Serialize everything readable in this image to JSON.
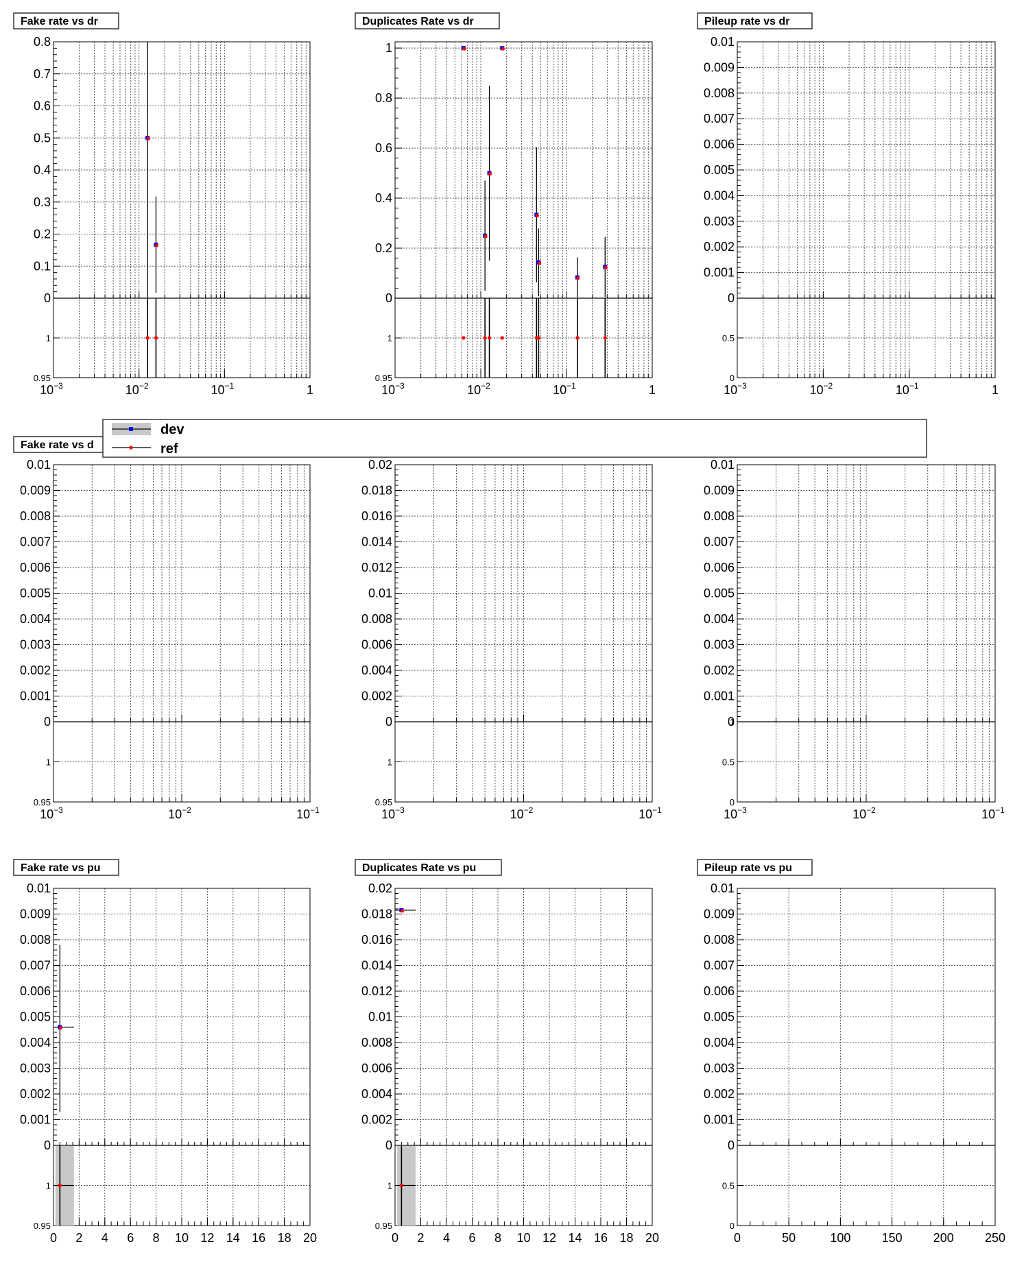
{
  "legend": {
    "entries": [
      {
        "label": "dev",
        "color": "#0000ff",
        "band_color": "#c8c8c8"
      },
      {
        "label": "ref",
        "color": "#ff0000"
      }
    ]
  },
  "colors": {
    "dev": "#0000ff",
    "ref": "#ff0000",
    "band": "#c8c8c8",
    "grid": "#555555"
  },
  "chart_data": [
    {
      "type": "scatter",
      "title": "Fake rate vs dr",
      "x_scale": "log",
      "xlim": [
        0.001,
        1
      ],
      "x_ticks": [
        {
          "v": 0.001,
          "b": "10",
          "e": "−3"
        },
        {
          "v": 0.01,
          "b": "10",
          "e": "−2"
        },
        {
          "v": 0.1,
          "b": "10",
          "e": "−1"
        },
        {
          "v": 1,
          "b": "1",
          "e": ""
        }
      ],
      "ylim": [
        0,
        0.8
      ],
      "y_ticks": [
        "0",
        "0.1",
        "0.2",
        "0.3",
        "0.4",
        "0.5",
        "0.6",
        "0.7",
        "0.8"
      ],
      "ratio": {
        "ylim": [
          0.95,
          1.05
        ],
        "y_ticks": [
          "0.95",
          "1"
        ]
      },
      "series": [
        {
          "name": "dev",
          "points": [
            {
              "x": 0.0126,
              "y": 0.5,
              "eyl": 0.5,
              "eyh": 0.5
            },
            {
              "x": 0.0158,
              "y": 0.167,
              "eyl": 0.15,
              "eyh": 0.15
            }
          ]
        },
        {
          "name": "ref",
          "points": [
            {
              "x": 0.0126,
              "y": 0.5,
              "eyl": 0.5,
              "eyh": 0.5
            },
            {
              "x": 0.0158,
              "y": 0.167,
              "eyl": 0.15,
              "eyh": 0.15
            }
          ]
        }
      ],
      "ratio_points": [
        {
          "x": 0.0126,
          "y": 1,
          "err": 0.2
        },
        {
          "x": 0.0158,
          "y": 1,
          "err": 0.2
        }
      ],
      "ratio_bands": []
    },
    {
      "type": "scatter",
      "title": "Duplicates Rate vs dr",
      "x_scale": "log",
      "xlim": [
        0.001,
        1
      ],
      "x_ticks": [
        {
          "v": 0.001,
          "b": "10",
          "e": "−3"
        },
        {
          "v": 0.01,
          "b": "10",
          "e": "−2"
        },
        {
          "v": 0.1,
          "b": "10",
          "e": "−1"
        },
        {
          "v": 1,
          "b": "1",
          "e": ""
        }
      ],
      "ylim": [
        0,
        1.025
      ],
      "y_ticks": [
        "0",
        "0.2",
        "0.4",
        "0.6",
        "0.8",
        "1"
      ],
      "ratio": {
        "ylim": [
          0.95,
          1.05
        ],
        "y_ticks": [
          "0.95",
          "1"
        ]
      },
      "series": [
        {
          "name": "dev",
          "points": [
            {
              "x": 0.0063,
              "y": 1,
              "eyl": 0,
              "eyh": 0
            },
            {
              "x": 0.0112,
              "y": 0.25,
              "eyl": 0.22,
              "eyh": 0.22
            },
            {
              "x": 0.0126,
              "y": 0.5,
              "eyl": 0.35,
              "eyh": 0.35
            },
            {
              "x": 0.0178,
              "y": 1,
              "eyl": 0,
              "eyh": 0
            },
            {
              "x": 0.0447,
              "y": 0.333,
              "eyl": 0.27,
              "eyh": 0.27
            },
            {
              "x": 0.0473,
              "y": 0.143,
              "eyl": 0.135,
              "eyh": 0.135
            },
            {
              "x": 0.134,
              "y": 0.083,
              "eyl": 0.08,
              "eyh": 0.08
            },
            {
              "x": 0.282,
              "y": 0.125,
              "eyl": 0.12,
              "eyh": 0.12
            }
          ]
        },
        {
          "name": "ref",
          "points": [
            {
              "x": 0.0063,
              "y": 1,
              "eyl": 0,
              "eyh": 0
            },
            {
              "x": 0.0112,
              "y": 0.25,
              "eyl": 0.22,
              "eyh": 0.22
            },
            {
              "x": 0.0126,
              "y": 0.5,
              "eyl": 0.35,
              "eyh": 0.35
            },
            {
              "x": 0.0178,
              "y": 1,
              "eyl": 0,
              "eyh": 0
            },
            {
              "x": 0.0447,
              "y": 0.333,
              "eyl": 0.27,
              "eyh": 0.27
            },
            {
              "x": 0.0473,
              "y": 0.143,
              "eyl": 0.135,
              "eyh": 0.135
            },
            {
              "x": 0.134,
              "y": 0.083,
              "eyl": 0.08,
              "eyh": 0.08
            },
            {
              "x": 0.282,
              "y": 0.125,
              "eyl": 0.12,
              "eyh": 0.12
            }
          ]
        }
      ],
      "ratio_points": [
        {
          "x": 0.0063,
          "y": 1,
          "err": 0
        },
        {
          "x": 0.0112,
          "y": 1,
          "err": 0.2
        },
        {
          "x": 0.0126,
          "y": 1,
          "err": 0.2
        },
        {
          "x": 0.0178,
          "y": 1,
          "err": 0
        },
        {
          "x": 0.0447,
          "y": 1,
          "err": 0.2
        },
        {
          "x": 0.0473,
          "y": 1,
          "err": 0.2
        },
        {
          "x": 0.134,
          "y": 1,
          "err": 0.2
        },
        {
          "x": 0.282,
          "y": 1,
          "err": 0.2
        }
      ],
      "ratio_bands": []
    },
    {
      "type": "scatter",
      "title": "Pileup rate vs dr",
      "x_scale": "log",
      "xlim": [
        0.001,
        1
      ],
      "x_ticks": [
        {
          "v": 0.001,
          "b": "10",
          "e": "−3"
        },
        {
          "v": 0.01,
          "b": "10",
          "e": "−2"
        },
        {
          "v": 0.1,
          "b": "10",
          "e": "−1"
        },
        {
          "v": 1,
          "b": "1",
          "e": ""
        }
      ],
      "ylim": [
        0,
        0.01
      ],
      "y_ticks": [
        "0",
        "0.001",
        "0.002",
        "0.003",
        "0.004",
        "0.005",
        "0.006",
        "0.007",
        "0.008",
        "0.009",
        "0.01"
      ],
      "ratio": {
        "ylim": [
          0,
          1
        ],
        "y_ticks": [
          "0",
          "0.5"
        ]
      },
      "series": [
        {
          "name": "dev",
          "points": []
        },
        {
          "name": "ref",
          "points": []
        }
      ],
      "ratio_points": [],
      "ratio_bands": []
    },
    {
      "type": "scatter",
      "title": "Fake rate vs d",
      "x_scale": "log",
      "xlim": [
        0.001,
        0.1
      ],
      "x_ticks": [
        {
          "v": 0.001,
          "b": "10",
          "e": "−3"
        },
        {
          "v": 0.01,
          "b": "10",
          "e": "−2"
        },
        {
          "v": 0.1,
          "b": "10",
          "e": "−1"
        }
      ],
      "ylim": [
        0,
        0.01
      ],
      "y_ticks": [
        "0",
        "0.001",
        "0.002",
        "0.003",
        "0.004",
        "0.005",
        "0.006",
        "0.007",
        "0.008",
        "0.009",
        "0.01"
      ],
      "ratio": {
        "ylim": [
          0.95,
          1.05
        ],
        "y_ticks": [
          "0.95",
          "1"
        ]
      },
      "series": [
        {
          "name": "dev",
          "points": []
        },
        {
          "name": "ref",
          "points": []
        }
      ],
      "ratio_points": [],
      "ratio_bands": []
    },
    {
      "type": "scatter",
      "title": "",
      "x_scale": "log",
      "xlim": [
        0.001,
        0.1
      ],
      "x_ticks": [
        {
          "v": 0.001,
          "b": "10",
          "e": "−3"
        },
        {
          "v": 0.01,
          "b": "10",
          "e": "−2"
        },
        {
          "v": 0.1,
          "b": "10",
          "e": "−1"
        }
      ],
      "ylim": [
        0,
        0.02
      ],
      "y_ticks": [
        "0",
        "0.002",
        "0.004",
        "0.006",
        "0.008",
        "0.01",
        "0.012",
        "0.014",
        "0.016",
        "0.018",
        "0.02"
      ],
      "ratio": {
        "ylim": [
          0.95,
          1.05
        ],
        "y_ticks": [
          "0.95",
          "1"
        ]
      },
      "series": [
        {
          "name": "dev",
          "points": []
        },
        {
          "name": "ref",
          "points": []
        }
      ],
      "ratio_points": [],
      "ratio_bands": []
    },
    {
      "type": "scatter",
      "title": "",
      "x_scale": "log",
      "xlim": [
        0.001,
        0.1
      ],
      "x_ticks": [
        {
          "v": 0.001,
          "b": "10",
          "e": "−3"
        },
        {
          "v": 0.01,
          "b": "10",
          "e": "−2"
        },
        {
          "v": 0.1,
          "b": "10",
          "e": "−1"
        }
      ],
      "ylim": [
        0,
        0.01
      ],
      "y_ticks": [
        "0",
        "0.001",
        "0.002",
        "0.003",
        "0.004",
        "0.005",
        "0.006",
        "0.007",
        "0.008",
        "0.009",
        "0.01"
      ],
      "ratio": {
        "ylim": [
          0,
          1
        ],
        "y_ticks": [
          "0",
          "0.5",
          "1"
        ]
      },
      "series": [
        {
          "name": "dev",
          "points": []
        },
        {
          "name": "ref",
          "points": []
        }
      ],
      "ratio_points": [],
      "ratio_bands": []
    },
    {
      "type": "scatter",
      "title": "Fake rate vs pu",
      "x_scale": "linear",
      "xlim": [
        0,
        20
      ],
      "x_ticks": [
        {
          "v": 0,
          "b": "0",
          "e": ""
        },
        {
          "v": 2,
          "b": "2",
          "e": ""
        },
        {
          "v": 4,
          "b": "4",
          "e": ""
        },
        {
          "v": 6,
          "b": "6",
          "e": ""
        },
        {
          "v": 8,
          "b": "8",
          "e": ""
        },
        {
          "v": 10,
          "b": "10",
          "e": ""
        },
        {
          "v": 12,
          "b": "12",
          "e": ""
        },
        {
          "v": 14,
          "b": "14",
          "e": ""
        },
        {
          "v": 16,
          "b": "16",
          "e": ""
        },
        {
          "v": 18,
          "b": "18",
          "e": ""
        },
        {
          "v": 20,
          "b": "20",
          "e": ""
        }
      ],
      "ylim": [
        0,
        0.01
      ],
      "y_ticks": [
        "0",
        "0.001",
        "0.002",
        "0.003",
        "0.004",
        "0.005",
        "0.006",
        "0.007",
        "0.008",
        "0.009",
        "0.01"
      ],
      "ratio": {
        "ylim": [
          0.95,
          1.05
        ],
        "y_ticks": [
          "0.95",
          "1"
        ]
      },
      "series": [
        {
          "name": "dev",
          "points": [
            {
              "x": 0.5,
              "y": 0.0046,
              "eyl": 0.0033,
              "eyh": 0.0032,
              "x0": 0,
              "x1": 1.6
            }
          ]
        },
        {
          "name": "ref",
          "points": [
            {
              "x": 0.5,
              "y": 0.0046,
              "eyl": 0.0033,
              "eyh": 0.0032,
              "x0": 0,
              "x1": 1.6
            }
          ]
        }
      ],
      "ratio_points": [
        {
          "x": 0.5,
          "y": 1,
          "err": 0.2,
          "x0": 0,
          "x1": 1.6
        }
      ],
      "ratio_bands": [
        {
          "x0": 0.15,
          "x1": 1.6
        }
      ]
    },
    {
      "type": "scatter",
      "title": "Duplicates Rate vs pu",
      "x_scale": "linear",
      "xlim": [
        0,
        20
      ],
      "x_ticks": [
        {
          "v": 0,
          "b": "0",
          "e": ""
        },
        {
          "v": 2,
          "b": "2",
          "e": ""
        },
        {
          "v": 4,
          "b": "4",
          "e": ""
        },
        {
          "v": 6,
          "b": "6",
          "e": ""
        },
        {
          "v": 8,
          "b": "8",
          "e": ""
        },
        {
          "v": 10,
          "b": "10",
          "e": ""
        },
        {
          "v": 12,
          "b": "12",
          "e": ""
        },
        {
          "v": 14,
          "b": "14",
          "e": ""
        },
        {
          "v": 16,
          "b": "16",
          "e": ""
        },
        {
          "v": 18,
          "b": "18",
          "e": ""
        },
        {
          "v": 20,
          "b": "20",
          "e": ""
        }
      ],
      "ylim": [
        0,
        0.02
      ],
      "y_ticks": [
        "0",
        "0.002",
        "0.004",
        "0.006",
        "0.008",
        "0.01",
        "0.012",
        "0.014",
        "0.016",
        "0.018",
        "0.02"
      ],
      "ratio": {
        "ylim": [
          0.95,
          1.05
        ],
        "y_ticks": [
          "0.95",
          "1"
        ]
      },
      "series": [
        {
          "name": "dev",
          "points": [
            {
              "x": 0.5,
              "y": 0.0183,
              "eyl": 0.0,
              "eyh": 0.0,
              "x0": 0,
              "x1": 1.6
            }
          ]
        },
        {
          "name": "ref",
          "points": [
            {
              "x": 0.5,
              "y": 0.0183,
              "eyl": 0.0,
              "eyh": 0.0,
              "x0": 0,
              "x1": 1.6
            }
          ]
        }
      ],
      "ratio_points": [
        {
          "x": 0.5,
          "y": 1,
          "err": 0.2,
          "x0": 0,
          "x1": 1.6
        }
      ],
      "ratio_bands": [
        {
          "x0": 0.15,
          "x1": 1.6
        }
      ]
    },
    {
      "type": "scatter",
      "title": "Pileup rate vs pu",
      "x_scale": "linear",
      "xlim": [
        0,
        250
      ],
      "x_ticks": [
        {
          "v": 0,
          "b": "0",
          "e": ""
        },
        {
          "v": 50,
          "b": "50",
          "e": ""
        },
        {
          "v": 100,
          "b": "100",
          "e": ""
        },
        {
          "v": 150,
          "b": "150",
          "e": ""
        },
        {
          "v": 200,
          "b": "200",
          "e": ""
        },
        {
          "v": 250,
          "b": "250",
          "e": ""
        }
      ],
      "ylim": [
        0,
        0.01
      ],
      "y_ticks": [
        "0",
        "0.001",
        "0.002",
        "0.003",
        "0.004",
        "0.005",
        "0.006",
        "0.007",
        "0.008",
        "0.009",
        "0.01"
      ],
      "ratio": {
        "ylim": [
          0,
          1
        ],
        "y_ticks": [
          "0",
          "0.5"
        ]
      },
      "series": [
        {
          "name": "dev",
          "points": []
        },
        {
          "name": "ref",
          "points": []
        }
      ],
      "ratio_points": [],
      "ratio_bands": []
    }
  ]
}
